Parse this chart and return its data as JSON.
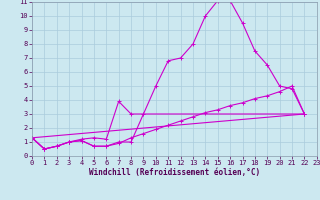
{
  "xlabel": "Windchill (Refroidissement éolien,°C)",
  "background_color": "#cce8f0",
  "grid_color": "#aaccdd",
  "line_color": "#cc00cc",
  "xlim": [
    0,
    23
  ],
  "ylim": [
    0,
    11
  ],
  "xtick_labels": [
    "0",
    "1",
    "2",
    "3",
    "4",
    "5",
    "6",
    "7",
    "8",
    "9",
    "10",
    "11",
    "12",
    "13",
    "14",
    "15",
    "16",
    "17",
    "18",
    "19",
    "20",
    "21",
    "22",
    "23"
  ],
  "ytick_labels": [
    "0",
    "1",
    "2",
    "3",
    "4",
    "5",
    "6",
    "7",
    "8",
    "9",
    "10",
    "11"
  ],
  "line1_x": [
    0,
    1,
    2,
    3,
    4,
    5,
    6,
    7,
    8,
    9,
    10,
    11,
    12,
    13,
    14,
    15,
    16,
    17,
    18,
    19,
    20,
    21,
    22
  ],
  "line1_y": [
    1.3,
    0.5,
    0.7,
    1.0,
    1.1,
    0.7,
    0.7,
    1.0,
    1.0,
    3.0,
    5.0,
    6.8,
    7.0,
    8.0,
    10.0,
    11.1,
    11.1,
    9.5,
    7.5,
    6.5,
    5.0,
    4.8,
    3.0
  ],
  "line2_x": [
    0,
    1,
    2,
    3,
    4,
    5,
    6,
    7,
    8,
    22
  ],
  "line2_y": [
    1.3,
    0.5,
    0.7,
    1.0,
    1.2,
    1.3,
    1.2,
    3.9,
    3.0,
    3.0
  ],
  "line3_x": [
    0,
    1,
    2,
    3,
    4,
    5,
    6,
    7,
    8,
    9,
    10,
    11,
    12,
    13,
    14,
    15,
    16,
    17,
    18,
    19,
    20,
    21,
    22
  ],
  "line3_y": [
    1.3,
    0.5,
    0.7,
    1.0,
    1.1,
    0.7,
    0.7,
    0.9,
    1.3,
    1.6,
    1.9,
    2.2,
    2.5,
    2.8,
    3.1,
    3.3,
    3.6,
    3.8,
    4.1,
    4.3,
    4.6,
    5.0,
    3.0
  ],
  "line4_x": [
    0,
    22
  ],
  "line4_y": [
    1.3,
    3.0
  ],
  "xlabel_fontsize": 5.5,
  "tick_fontsize": 5.0
}
